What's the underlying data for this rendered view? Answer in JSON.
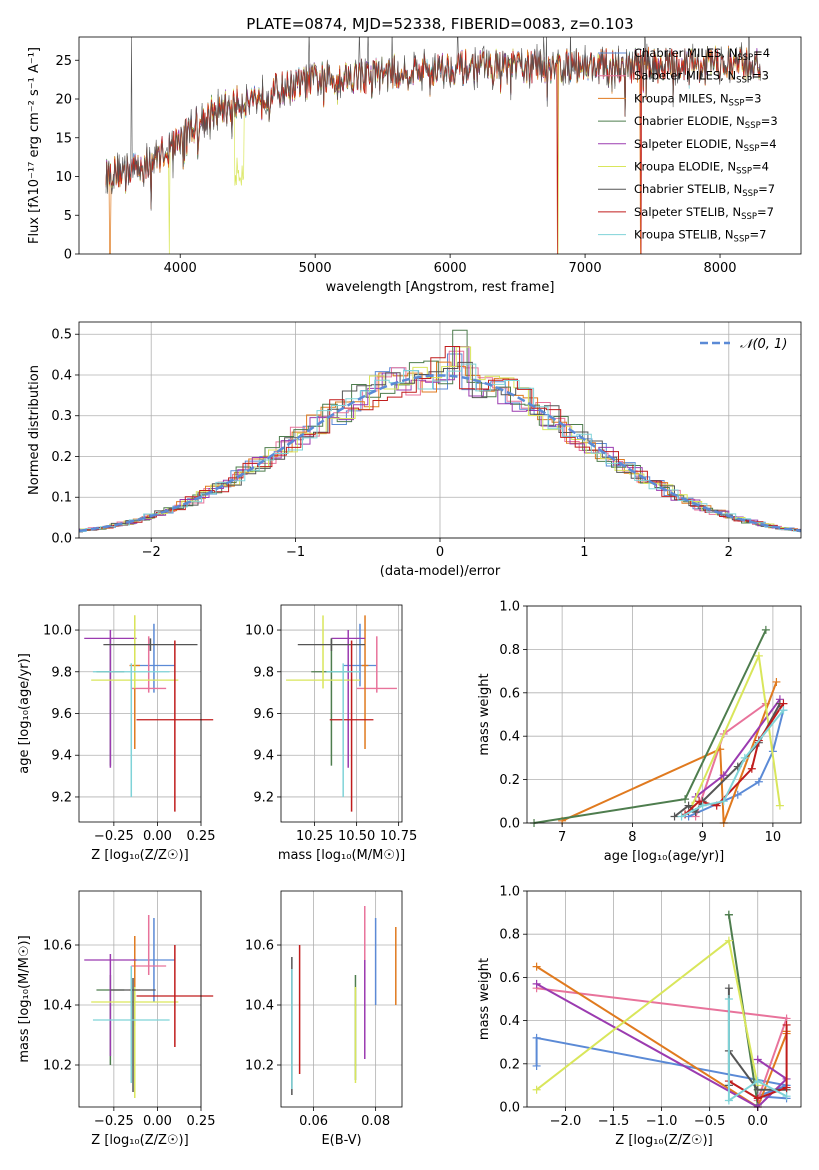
{
  "colors": {
    "chabrier_miles": "#5b8ad6",
    "salpeter_miles": "#e8739b",
    "kroupa_miles": "#e07a1f",
    "chabrier_elodie": "#4e7d4e",
    "salpeter_elodie": "#9b3bb0",
    "kroupa_elodie": "#d9e65b",
    "chabrier_stelib": "#555555",
    "salpeter_stelib": "#c01c1c",
    "kroupa_stelib": "#7fd3d8",
    "normal_curve": "#5b8ad6"
  },
  "chart_data": [
    {
      "id": "spectrum",
      "type": "line",
      "title": "PLATE=0874, MJD=52338, FIBERID=0083, z=0.103",
      "xlabel": "wavelength [Angstrom, rest frame]",
      "ylabel": "Flux [fλ10⁻¹⁷ erg cm⁻² s⁻¹ A⁻¹]",
      "xlim": [
        3250,
        8600
      ],
      "ylim": [
        0,
        28
      ],
      "xticks": [
        "4000",
        "5000",
        "6000",
        "7000",
        "8000"
      ],
      "yticks": [
        "0",
        "5",
        "10",
        "15",
        "20",
        "25"
      ],
      "grid": false,
      "legend_position": "top-right",
      "legend": [
        {
          "name": "Chabrier MILES, N",
          "sub": "SSP",
          "suffix": "=4",
          "color_key": "chabrier_miles"
        },
        {
          "name": "Salpeter MILES, N",
          "sub": "SSP",
          "suffix": "=3",
          "color_key": "salpeter_miles"
        },
        {
          "name": "Kroupa MILES, N",
          "sub": "SSP",
          "suffix": "=3",
          "color_key": "kroupa_miles"
        },
        {
          "name": "Chabrier ELODIE, N",
          "sub": "SSP",
          "suffix": "=3",
          "color_key": "chabrier_elodie"
        },
        {
          "name": "Salpeter ELODIE, N",
          "sub": "SSP",
          "suffix": "=4",
          "color_key": "salpeter_elodie"
        },
        {
          "name": "Kroupa ELODIE, N",
          "sub": "SSP",
          "suffix": "=4",
          "color_key": "kroupa_elodie"
        },
        {
          "name": "Chabrier STELIB, N",
          "sub": "SSP",
          "suffix": "=7",
          "color_key": "chabrier_stelib"
        },
        {
          "name": "Salpeter STELIB, N",
          "sub": "SSP",
          "suffix": "=7",
          "color_key": "salpeter_stelib"
        },
        {
          "name": "Kroupa STELIB, N",
          "sub": "SSP",
          "suffix": "=7",
          "color_key": "kroupa_stelib"
        }
      ],
      "continuum_knots": [
        [
          3450,
          10.2
        ],
        [
          3600,
          10.8
        ],
        [
          3750,
          11.5
        ],
        [
          3900,
          13.5
        ],
        [
          4000,
          15.0
        ],
        [
          4200,
          18.0
        ],
        [
          4500,
          20.0
        ],
        [
          4800,
          21.5
        ],
        [
          5000,
          22.5
        ],
        [
          5300,
          23.0
        ],
        [
          5600,
          23.5
        ],
        [
          6000,
          24.0
        ],
        [
          6500,
          24.2
        ],
        [
          7000,
          24.3
        ],
        [
          7500,
          24.4
        ],
        [
          8000,
          24.5
        ],
        [
          8300,
          24.5
        ]
      ],
      "model_drops": [
        {
          "series": "kroupa_miles",
          "x": 3480,
          "to": 0
        },
        {
          "series": "kroupa_elodie",
          "x": 3920,
          "to": 0
        },
        {
          "series": "kroupa_elodie",
          "x": 6800,
          "to": 0
        },
        {
          "series": "salpeter_stelib",
          "x": 6795,
          "to": 0
        },
        {
          "series": "kroupa_miles",
          "x": 7410,
          "to": 0
        },
        {
          "series": "salpeter_stelib",
          "x": 7415,
          "to": 0
        }
      ]
    },
    {
      "id": "residuals",
      "type": "histogram",
      "xlabel": "(data-model)/error",
      "ylabel": "Normed distribution",
      "xlim": [
        -2.5,
        2.5
      ],
      "ylim": [
        0,
        0.53
      ],
      "xticks": [
        "−2",
        "−1",
        "0",
        "1",
        "2"
      ],
      "yticks": [
        "0.0",
        "0.1",
        "0.2",
        "0.3",
        "0.4",
        "0.5"
      ],
      "grid": true,
      "legend_position": "top-right",
      "legend": [
        {
          "name": "𝒩(0, 1)",
          "color_key": "normal_curve",
          "style": "dashed"
        }
      ],
      "bin_width": 0.1,
      "bin_start": -2.5,
      "peak_bins": [
        {
          "x": 0.1,
          "y": 0.51
        },
        {
          "x": 0.1,
          "y": 0.47
        }
      ]
    },
    {
      "id": "age_vs_Z",
      "type": "errorbar",
      "xlabel": "Z [log₁₀(Z/Z☉)]",
      "ylabel": "age  [log₁₀(age/yr)]",
      "xlim": [
        -0.45,
        0.25
      ],
      "ylim": [
        9.08,
        10.12
      ],
      "xticks": [
        "−0.25",
        "0.00",
        "0.25"
      ],
      "xtick_values": [
        -0.25,
        0.0,
        0.25
      ],
      "yticks": [
        "9.2",
        "9.4",
        "9.6",
        "9.8",
        "10.0"
      ],
      "ytick_values": [
        9.2,
        9.4,
        9.6,
        9.8,
        10.0
      ],
      "points": [
        {
          "key": "chabrier_miles",
          "x": -0.02,
          "y": 9.83,
          "xerr": 0.12,
          "yerr": [
            0.13,
            0.2
          ]
        },
        {
          "key": "salpeter_miles",
          "x": -0.05,
          "y": 9.72,
          "xerr": 0.1,
          "yerr": [
            0.02,
            0.25
          ]
        },
        {
          "key": "kroupa_miles",
          "x": -0.13,
          "y": 9.83,
          "xerr": 0.03,
          "yerr": [
            0.4,
            0.24
          ]
        },
        {
          "key": "chabrier_elodie",
          "x": -0.27,
          "y": 9.8,
          "xerr": 0.08,
          "yerr": [
            0.45,
            0.16
          ]
        },
        {
          "key": "salpeter_elodie",
          "x": -0.27,
          "y": 9.96,
          "xerr": 0.15,
          "yerr": [
            0.62,
            0.04
          ]
        },
        {
          "key": "kroupa_elodie",
          "x": -0.13,
          "y": 9.76,
          "xerr": 0.25,
          "yerr": [
            0.04,
            0.31
          ]
        },
        {
          "key": "chabrier_stelib",
          "x": -0.04,
          "y": 9.93,
          "xerr": 0.27,
          "yerr": [
            0.03,
            0.03
          ]
        },
        {
          "key": "salpeter_stelib",
          "x": 0.1,
          "y": 9.57,
          "xerr": 0.22,
          "yerr": [
            0.44,
            0.38
          ]
        },
        {
          "key": "kroupa_stelib",
          "x": -0.15,
          "y": 9.8,
          "xerr": 0.22,
          "yerr": [
            0.6,
            0.04
          ]
        }
      ]
    },
    {
      "id": "age_vs_mass",
      "type": "errorbar",
      "xlabel": "mass [log₁₀(M/M☉)]",
      "ylabel": "",
      "xlim": [
        10.05,
        10.77
      ],
      "ylim": [
        9.08,
        10.12
      ],
      "xticks": [
        "10.25",
        "10.50",
        "10.75"
      ],
      "xtick_values": [
        10.25,
        10.5,
        10.75
      ],
      "yticks": [
        "9.2",
        "9.4",
        "9.6",
        "9.8",
        "10.0"
      ],
      "ytick_values": [
        9.2,
        9.4,
        9.6,
        9.8,
        10.0
      ],
      "points": [
        {
          "key": "chabrier_miles",
          "x": 10.52,
          "y": 9.83,
          "xerr": 0.1,
          "yerr": [
            0.1,
            0.2
          ]
        },
        {
          "key": "salpeter_miles",
          "x": 10.62,
          "y": 9.72,
          "xerr": 0.12,
          "yerr": [
            0.02,
            0.25
          ]
        },
        {
          "key": "kroupa_miles",
          "x": 10.55,
          "y": 9.83,
          "xerr": 0.02,
          "yerr": [
            0.4,
            0.24
          ]
        },
        {
          "key": "chabrier_elodie",
          "x": 10.35,
          "y": 9.8,
          "xerr": 0.12,
          "yerr": [
            0.45,
            0.16
          ]
        },
        {
          "key": "salpeter_elodie",
          "x": 10.45,
          "y": 9.96,
          "xerr": 0.1,
          "yerr": [
            0.62,
            0.04
          ]
        },
        {
          "key": "kroupa_elodie",
          "x": 10.3,
          "y": 9.76,
          "xerr": 0.22,
          "yerr": [
            0.04,
            0.31
          ]
        },
        {
          "key": "chabrier_stelib",
          "x": 10.35,
          "y": 9.93,
          "xerr": 0.2,
          "yerr": [
            0.03,
            0.03
          ]
        },
        {
          "key": "salpeter_stelib",
          "x": 10.47,
          "y": 9.57,
          "xerr": 0.13,
          "yerr": [
            0.44,
            0.38
          ]
        },
        {
          "key": "kroupa_stelib",
          "x": 10.42,
          "y": 9.8,
          "xerr": 0.1,
          "yerr": [
            0.6,
            0.04
          ]
        }
      ]
    },
    {
      "id": "weight_vs_age",
      "type": "line",
      "xlabel": "age  [log₁₀(age/yr)]",
      "ylabel": "mass weight",
      "xlim": [
        6.5,
        10.4
      ],
      "ylim": [
        0,
        1.0
      ],
      "xticks": [
        "7",
        "8",
        "9",
        "10"
      ],
      "xtick_values": [
        7,
        8,
        9,
        10
      ],
      "yticks": [
        "0.0",
        "0.2",
        "0.4",
        "0.6",
        "0.8",
        "1.0"
      ],
      "ytick_values": [
        0,
        0.2,
        0.4,
        0.6,
        0.8,
        1.0
      ],
      "grid": true,
      "series": [
        {
          "key": "chabrier_miles",
          "x": [
            8.8,
            9.5,
            9.8,
            10.0,
            10.15
          ],
          "y": [
            0.03,
            0.13,
            0.19,
            0.33,
            0.52
          ]
        },
        {
          "key": "salpeter_miles",
          "x": [
            8.9,
            9.3,
            9.9
          ],
          "y": [
            0.03,
            0.41,
            0.55
          ]
        },
        {
          "key": "kroupa_miles",
          "x": [
            7.0,
            9.25,
            9.3,
            10.05
          ],
          "y": [
            0.01,
            0.34,
            0.0,
            0.65
          ]
        },
        {
          "key": "chabrier_elodie",
          "x": [
            6.6,
            8.75,
            9.9
          ],
          "y": [
            0.0,
            0.11,
            0.89
          ]
        },
        {
          "key": "salpeter_elodie",
          "x": [
            8.9,
            9.3,
            10.1
          ],
          "y": [
            0.12,
            0.22,
            0.57
          ]
        },
        {
          "key": "kroupa_elodie",
          "x": [
            8.85,
            9.8,
            10.1
          ],
          "y": [
            0.08,
            0.77,
            0.08
          ]
        },
        {
          "key": "chabrier_stelib",
          "x": [
            8.6,
            8.8,
            8.9,
            9.0,
            9.5,
            9.8,
            10.1
          ],
          "y": [
            0.03,
            0.08,
            0.05,
            0.1,
            0.26,
            0.37,
            0.55
          ]
        },
        {
          "key": "salpeter_stelib",
          "x": [
            8.75,
            8.95,
            9.2,
            9.7,
            9.8,
            10.15
          ],
          "y": [
            0.04,
            0.1,
            0.08,
            0.25,
            0.38,
            0.55
          ]
        },
        {
          "key": "kroupa_stelib",
          "x": [
            8.7,
            9.0,
            9.3,
            9.6,
            10.15
          ],
          "y": [
            0.03,
            0.08,
            0.1,
            0.3,
            0.52
          ]
        }
      ]
    },
    {
      "id": "mass_vs_Z",
      "type": "errorbar",
      "xlabel": "Z [log₁₀(Z/Z☉)]",
      "ylabel": "mass [log₁₀(M/M☉)]",
      "xlim": [
        -0.45,
        0.25
      ],
      "ylim": [
        10.06,
        10.78
      ],
      "xticks": [
        "−0.25",
        "0.00",
        "0.25"
      ],
      "xtick_values": [
        -0.25,
        0.0,
        0.25
      ],
      "yticks": [
        "10.2",
        "10.4",
        "10.6"
      ],
      "ytick_values": [
        10.2,
        10.4,
        10.6
      ],
      "points": [
        {
          "key": "chabrier_miles",
          "x": -0.02,
          "y": 10.55,
          "xerr": 0.12,
          "yerr": [
            0.14,
            0.14
          ]
        },
        {
          "key": "salpeter_miles",
          "x": -0.05,
          "y": 10.53,
          "xerr": 0.1,
          "yerr": [
            0.03,
            0.17
          ]
        },
        {
          "key": "kroupa_miles",
          "x": -0.13,
          "y": 10.45,
          "xerr": 0.03,
          "yerr": [
            0.12,
            0.18
          ]
        },
        {
          "key": "chabrier_elodie",
          "x": -0.27,
          "y": 10.45,
          "xerr": 0.08,
          "yerr": [
            0.25,
            0.05
          ]
        },
        {
          "key": "salpeter_elodie",
          "x": -0.27,
          "y": 10.55,
          "xerr": 0.15,
          "yerr": [
            0.32,
            0.02
          ]
        },
        {
          "key": "kroupa_elodie",
          "x": -0.13,
          "y": 10.41,
          "xerr": 0.25,
          "yerr": [
            0.32,
            0.05
          ]
        },
        {
          "key": "chabrier_stelib",
          "x": -0.14,
          "y": 10.45,
          "xerr": 0.13,
          "yerr": [
            0.34,
            0.04
          ]
        },
        {
          "key": "salpeter_stelib",
          "x": 0.1,
          "y": 10.43,
          "xerr": 0.22,
          "yerr": [
            0.17,
            0.17
          ]
        },
        {
          "key": "kroupa_stelib",
          "x": -0.15,
          "y": 10.35,
          "xerr": 0.22,
          "yerr": [
            0.21,
            0.18
          ]
        }
      ]
    },
    {
      "id": "mass_vs_EBV",
      "type": "errorbar",
      "xlabel": "E(B-V)",
      "ylabel": "",
      "xlim": [
        0.0495,
        0.0885
      ],
      "ylim": [
        10.06,
        10.78
      ],
      "xticks": [
        "0.06",
        "0.08"
      ],
      "xtick_values": [
        0.06,
        0.08
      ],
      "yticks": [
        "10.2",
        "10.4",
        "10.6"
      ],
      "ytick_values": [
        10.2,
        10.4,
        10.6
      ],
      "points": [
        {
          "key": "chabrier_miles",
          "x": 0.08,
          "y": 10.55,
          "xerr": 0,
          "yerr": [
            0.15,
            0.14
          ]
        },
        {
          "key": "salpeter_miles",
          "x": 0.0765,
          "y": 10.6,
          "xerr": 0,
          "yerr": [
            0.15,
            0.13
          ]
        },
        {
          "key": "kroupa_miles",
          "x": 0.0865,
          "y": 10.53,
          "xerr": 0,
          "yerr": [
            0.13,
            0.13
          ]
        },
        {
          "key": "chabrier_elodie",
          "x": 0.0735,
          "y": 10.4,
          "xerr": 0,
          "yerr": [
            0.25,
            0.1
          ]
        },
        {
          "key": "salpeter_elodie",
          "x": 0.0765,
          "y": 10.45,
          "xerr": 0,
          "yerr": [
            0.23,
            0.1
          ]
        },
        {
          "key": "kroupa_elodie",
          "x": 0.0735,
          "y": 10.3,
          "xerr": 0,
          "yerr": [
            0.16,
            0.16
          ]
        },
        {
          "key": "chabrier_stelib",
          "x": 0.053,
          "y": 10.33,
          "xerr": 0,
          "yerr": [
            0.23,
            0.23
          ]
        },
        {
          "key": "salpeter_stelib",
          "x": 0.0555,
          "y": 10.4,
          "xerr": 0,
          "yerr": [
            0.23,
            0.2
          ]
        },
        {
          "key": "kroupa_stelib",
          "x": 0.053,
          "y": 10.3,
          "xerr": 0,
          "yerr": [
            0.18,
            0.22
          ]
        }
      ]
    },
    {
      "id": "weight_vs_Z",
      "type": "line",
      "xlabel": "Z [log₁₀(Z/Z☉)]",
      "ylabel": "mass weight",
      "xlim": [
        -2.4,
        0.45
      ],
      "ylim": [
        0,
        1.0
      ],
      "xticks": [
        "−2.0",
        "−1.5",
        "−1.0",
        "−0.5",
        "0.0"
      ],
      "xtick_values": [
        -2.0,
        -1.5,
        -1.0,
        -0.5,
        0.0
      ],
      "yticks": [
        "0.0",
        "0.2",
        "0.4",
        "0.6",
        "0.8",
        "1.0"
      ],
      "ytick_values": [
        0,
        0.2,
        0.4,
        0.6,
        0.8,
        1.0
      ],
      "grid": true,
      "series": [
        {
          "key": "chabrier_miles",
          "x": [
            -2.3,
            -2.3,
            0.3,
            0.0,
            0.3
          ],
          "y": [
            0.19,
            0.32,
            0.1,
            0.05,
            0.04
          ]
        },
        {
          "key": "salpeter_miles",
          "x": [
            -2.3,
            0.3,
            0.0
          ],
          "y": [
            0.55,
            0.41,
            0.03
          ]
        },
        {
          "key": "kroupa_miles",
          "x": [
            -2.3,
            0.0,
            0.3,
            0.3
          ],
          "y": [
            0.65,
            0.0,
            0.34,
            0.35
          ]
        },
        {
          "key": "chabrier_elodie",
          "x": [
            -0.3,
            0.0,
            -0.3
          ],
          "y": [
            0.89,
            0.01,
            0.89
          ]
        },
        {
          "key": "salpeter_elodie",
          "x": [
            -2.3,
            0.0,
            0.3,
            0.0
          ],
          "y": [
            0.57,
            0.0,
            0.13,
            0.22
          ]
        },
        {
          "key": "kroupa_elodie",
          "x": [
            -2.3,
            -0.3,
            0.0
          ],
          "y": [
            0.08,
            0.77,
            0.1
          ]
        },
        {
          "key": "chabrier_stelib",
          "x": [
            -0.3,
            -0.3,
            -0.3,
            0.0,
            0.3
          ],
          "y": [
            0.55,
            0.1,
            0.26,
            0.08,
            0.08
          ]
        },
        {
          "key": "salpeter_stelib",
          "x": [
            -0.3,
            0.0,
            0.3,
            0.3
          ],
          "y": [
            0.12,
            0.04,
            0.09,
            0.38
          ]
        },
        {
          "key": "kroupa_stelib",
          "x": [
            -0.3,
            -0.3,
            0.0,
            0.3
          ],
          "y": [
            0.5,
            0.03,
            0.12,
            0.05
          ]
        }
      ]
    }
  ]
}
